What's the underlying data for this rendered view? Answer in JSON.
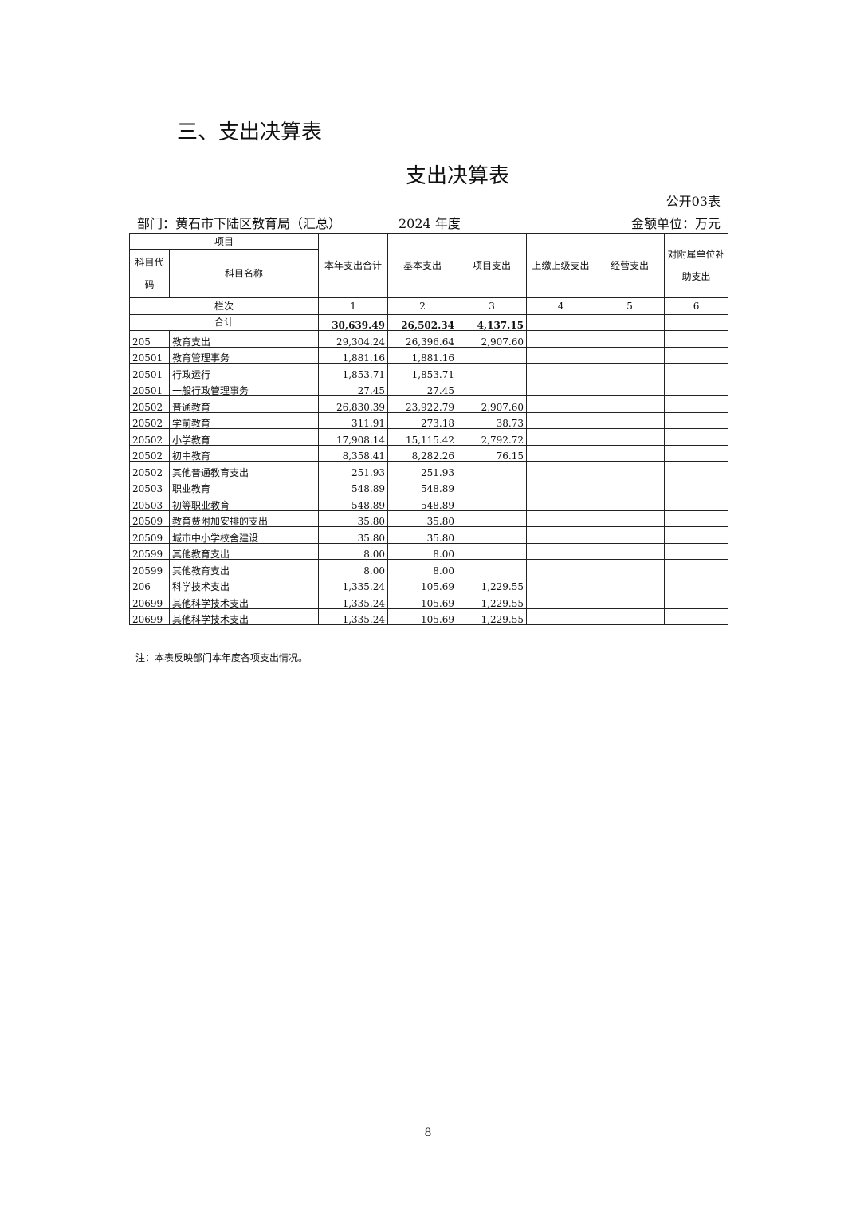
{
  "section_title": "三、支出决算表",
  "table_title": "支出决算表",
  "table_no": "公开03表",
  "department": "部门：黄石市下陆区教育局（汇总）",
  "year": "2024 年度",
  "unit": "金额单位：万元",
  "headers": {
    "item": "项目",
    "code": "科目代码",
    "name": "科目名称",
    "cols": [
      "本年支出合计",
      "基本支出",
      "项目支出",
      "上缴上级支出",
      "经营支出",
      "对附属单位补助支出"
    ],
    "row_label": "栏次",
    "col_numbers": [
      "1",
      "2",
      "3",
      "4",
      "5",
      "6"
    ]
  },
  "total": {
    "label": "合计",
    "values": [
      "30,639.49",
      "26,502.34",
      "4,137.15",
      "",
      "",
      ""
    ]
  },
  "rows": [
    {
      "code": "205",
      "name": "教育支出",
      "values": [
        "29,304.24",
        "26,396.64",
        "2,907.60"
      ]
    },
    {
      "code": "20501",
      "name": "教育管理事务",
      "values": [
        "1,881.16",
        "1,881.16",
        ""
      ]
    },
    {
      "code": "20501",
      "name": "行政运行",
      "values": [
        "1,853.71",
        "1,853.71",
        ""
      ]
    },
    {
      "code": "20501",
      "name": "一般行政管理事务",
      "values": [
        "27.45",
        "27.45",
        ""
      ]
    },
    {
      "code": "20502",
      "name": "普通教育",
      "values": [
        "26,830.39",
        "23,922.79",
        "2,907.60"
      ]
    },
    {
      "code": "20502",
      "name": "学前教育",
      "values": [
        "311.91",
        "273.18",
        "38.73"
      ]
    },
    {
      "code": "20502",
      "name": "小学教育",
      "values": [
        "17,908.14",
        "15,115.42",
        "2,792.72"
      ]
    },
    {
      "code": "20502",
      "name": "初中教育",
      "values": [
        "8,358.41",
        "8,282.26",
        "76.15"
      ]
    },
    {
      "code": "20502",
      "name": "其他普通教育支出",
      "values": [
        "251.93",
        "251.93",
        ""
      ]
    },
    {
      "code": "20503",
      "name": "职业教育",
      "values": [
        "548.89",
        "548.89",
        ""
      ]
    },
    {
      "code": "20503",
      "name": "初等职业教育",
      "values": [
        "548.89",
        "548.89",
        ""
      ]
    },
    {
      "code": "20509",
      "name": "教育费附加安排的支出",
      "values": [
        "35.80",
        "35.80",
        ""
      ]
    },
    {
      "code": "20509",
      "name": "城市中小学校舍建设",
      "values": [
        "35.80",
        "35.80",
        ""
      ]
    },
    {
      "code": "20599",
      "name": "其他教育支出",
      "values": [
        "8.00",
        "8.00",
        ""
      ]
    },
    {
      "code": "20599",
      "name": "其他教育支出",
      "values": [
        "8.00",
        "8.00",
        ""
      ]
    },
    {
      "code": "206",
      "name": "科学技术支出",
      "values": [
        "1,335.24",
        "105.69",
        "1,229.55"
      ]
    },
    {
      "code": "20699",
      "name": "其他科学技术支出",
      "values": [
        "1,335.24",
        "105.69",
        "1,229.55"
      ]
    },
    {
      "code": "20699",
      "name": "其他科学技术支出",
      "values": [
        "1,335.24",
        "105.69",
        "1,229.55"
      ]
    }
  ],
  "note": "注：本表反映部门本年度各项支出情况。",
  "page_number": "8"
}
